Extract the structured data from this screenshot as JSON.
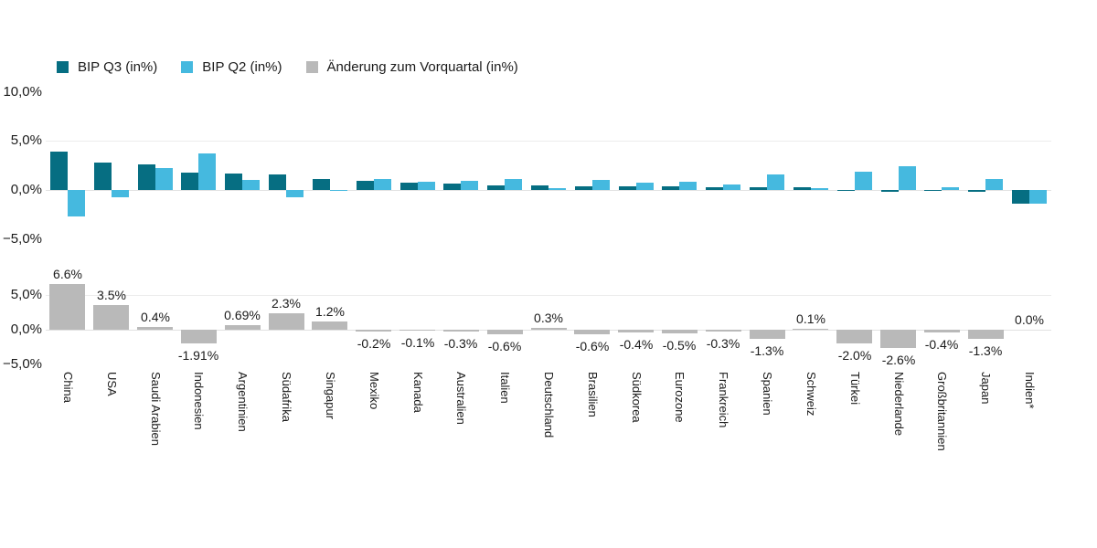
{
  "legend": [
    {
      "label": "BIP Q3 (in%)",
      "color": "#066e82"
    },
    {
      "label": "BIP Q2 (in%)",
      "color": "#45b9df"
    },
    {
      "label": "Änderung zum Vorquartal (in%)",
      "color": "#b9b9b9"
    }
  ],
  "chart_data": {
    "type": "bar",
    "categories": [
      "China",
      "USA",
      "Saudi Arabien",
      "Indonesien",
      "Argentinien",
      "Südafrika",
      "Singapur",
      "Mexiko",
      "Kanada",
      "Australien",
      "Italien",
      "Deutschland",
      "Brasilien",
      "Südkorea",
      "Eurozone",
      "Frankreich",
      "Spanien",
      "Schweiz",
      "Türkei",
      "Niederlande",
      "Großbritannien",
      "Japan",
      "Indien*"
    ],
    "series": [
      {
        "name": "BIP Q3 (in%)",
        "color": "#066e82",
        "values": [
          3.9,
          2.8,
          2.6,
          1.8,
          1.7,
          1.6,
          1.1,
          0.9,
          0.75,
          0.65,
          0.5,
          0.45,
          0.4,
          0.35,
          0.35,
          0.25,
          0.25,
          0.3,
          -0.1,
          -0.2,
          -0.1,
          -0.2,
          -1.4
        ]
      },
      {
        "name": "BIP Q2 (in%)",
        "color": "#45b9df",
        "values": [
          -2.7,
          -0.7,
          2.2,
          3.71,
          1.01,
          -0.7,
          -0.1,
          1.1,
          0.85,
          0.95,
          1.1,
          0.15,
          1.0,
          0.75,
          0.85,
          0.55,
          1.55,
          0.2,
          1.9,
          2.4,
          0.3,
          1.1,
          -1.4
        ]
      }
    ],
    "change_series": {
      "name": "Änderung zum Vorquartal (in%)",
      "color": "#b9b9b9",
      "values": [
        6.6,
        3.5,
        0.4,
        -1.91,
        0.69,
        2.3,
        1.2,
        -0.2,
        -0.1,
        -0.3,
        -0.6,
        0.3,
        -0.6,
        -0.4,
        -0.5,
        -0.3,
        -1.3,
        0.1,
        -2.0,
        -2.6,
        -0.4,
        -1.3,
        0.0
      ],
      "labels": [
        "6.6%",
        "3.5%",
        "0.4%",
        "-1.91%",
        "0.69%",
        "2.3%",
        "1.2%",
        "-0.2%",
        "-0.1%",
        "-0.3%",
        "-0.6%",
        "0.3%",
        "-0.6%",
        "-0.4%",
        "-0.5%",
        "-0.3%",
        "-1.3%",
        "0.1%",
        "-2.0%",
        "-2.6%",
        "-0.4%",
        "-1.3%",
        "0.0%"
      ],
      "label_format": "percent"
    },
    "top_axis": {
      "ticks": [
        {
          "label": "10,0%",
          "value": 10
        },
        {
          "label": "5,0%",
          "value": 5
        },
        {
          "label": "0,0%",
          "value": 0
        },
        {
          "label": "−5,0%",
          "value": -5
        }
      ],
      "gridline_values": [
        5,
        0
      ],
      "ylim": [
        -5,
        10
      ]
    },
    "bottom_axis": {
      "ticks": [
        {
          "label": "5,0%",
          "value": 5
        },
        {
          "label": "0,0%",
          "value": 0
        },
        {
          "label": "−5,0%",
          "value": -5
        }
      ],
      "gridline_values": [
        5,
        0
      ],
      "ylim": [
        -5,
        7.5
      ]
    },
    "grid": "horizontal",
    "legend_position": "top-left"
  },
  "colors": {
    "gridline": "#ececec",
    "zeroline": "#e2e2e2",
    "text": "#1a1a1a"
  }
}
